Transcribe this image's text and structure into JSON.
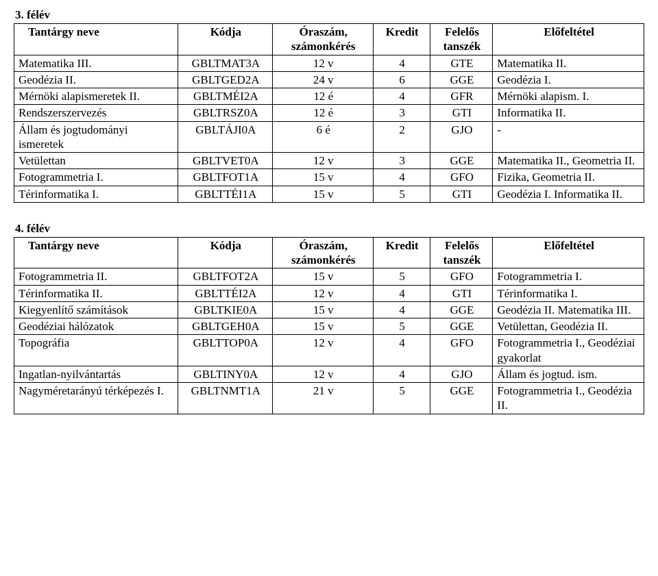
{
  "headers": {
    "name": "Tantárgy neve",
    "code": "Kódja",
    "hours_l1": "Óraszám,",
    "hours_l2": "számonkérés",
    "credit": "Kredit",
    "dept_l1": "Felelős",
    "dept_l2": "tanszék",
    "prereq": "Előfeltétel"
  },
  "sem3": {
    "title": "3. félév",
    "rows": [
      {
        "name": "Matematika III.",
        "code": "GBLTMAT3A",
        "hours": "12 v",
        "credit": "4",
        "dept": "GTE",
        "prereq": "Matematika II."
      },
      {
        "name": "Geodézia II.",
        "code": "GBLTGED2A",
        "hours": "24 v",
        "credit": "6",
        "dept": "GGE",
        "prereq": "Geodézia I."
      },
      {
        "name": "Mérnöki alapismeretek II.",
        "code": "GBLTMÉI2A",
        "hours": "12 é",
        "credit": "4",
        "dept": "GFR",
        "prereq": "Mérnöki alapism. I."
      },
      {
        "name": "Rendszerszervezés",
        "code": "GBLTRSZ0A",
        "hours": "12 é",
        "credit": "3",
        "dept": "GTI",
        "prereq": "Informatika II."
      },
      {
        "name": "Állam és jogtudományi ismeretek",
        "code": "GBLTÁJI0A",
        "hours": "6 é",
        "credit": "2",
        "dept": "GJO",
        "prereq": "-"
      },
      {
        "name": "Vetülettan",
        "code": "GBLTVET0A",
        "hours": "12 v",
        "credit": "3",
        "dept": "GGE",
        "prereq": "Matematika II., Geometria II."
      },
      {
        "name": "Fotogrammetria I.",
        "code": "GBLTFOT1A",
        "hours": "15 v",
        "credit": "4",
        "dept": "GFO",
        "prereq": "Fizika, Geometria II."
      },
      {
        "name": "Térinformatika I.",
        "code": "GBLTTÉI1A",
        "hours": "15 v",
        "credit": "5",
        "dept": "GTI",
        "prereq": "Geodézia I. Informatika II."
      }
    ]
  },
  "sem4": {
    "title": "4. félév",
    "rows": [
      {
        "name": "Fotogrammetria II.",
        "code": "GBLTFOT2A",
        "hours": "15 v",
        "credit": "5",
        "dept": "GFO",
        "prereq": "Fotogrammetria I."
      },
      {
        "name": "Térinformatika II.",
        "code": "GBLTTÉI2A",
        "hours": "12 v",
        "credit": "4",
        "dept": "GTI",
        "prereq": "Térinformatika I."
      },
      {
        "name": "Kiegyenlítő számítások",
        "code": "GBLTKIE0A",
        "hours": "15 v",
        "credit": "4",
        "dept": "GGE",
        "prereq": "Geodézia II. Matematika III."
      },
      {
        "name": "Geodéziai hálózatok",
        "code": "GBLTGEH0A",
        "hours": "15 v",
        "credit": "5",
        "dept": "GGE",
        "prereq": "Vetülettan, Geodézia II."
      },
      {
        "name": "Topográfia",
        "code": "GBLTTOP0A",
        "hours": "12 v",
        "credit": "4",
        "dept": "GFO",
        "prereq": "Fotogrammetria I., Geodéziai gyakorlat"
      },
      {
        "name": "Ingatlan-nyilvántartás",
        "code": "GBLTINY0A",
        "hours": "12 v",
        "credit": "4",
        "dept": "GJO",
        "prereq": "Állam és jogtud. ism."
      },
      {
        "name": "Nagyméretarányú térképezés I.",
        "code": "GBLTNMT1A",
        "hours": "21 v",
        "credit": "5",
        "dept": "GGE",
        "prereq": "Fotogrammetria I., Geodézia II."
      }
    ]
  }
}
